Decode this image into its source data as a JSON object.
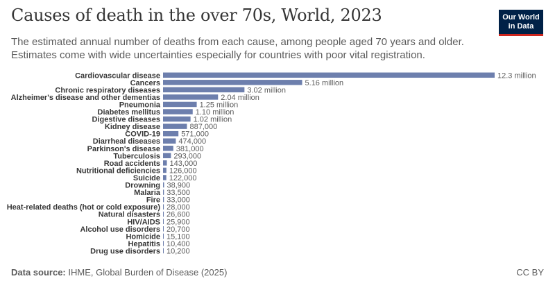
{
  "header": {
    "title": "Causes of death in the over 70s, World, 2023",
    "subtitle": "The estimated annual number of deaths from each cause, among people aged 70 years and older. Estimates come with wide uncertainties especially for countries with poor vital registration."
  },
  "logo": {
    "line1": "Our World",
    "line2": "in Data"
  },
  "footer": {
    "source_label": "Data source:",
    "source_text": "IHME, Global Burden of Disease (2025)",
    "license": "CC BY"
  },
  "colors": {
    "bar": "#6d7fad",
    "logo_bg": "#002147",
    "logo_accent": "#ce261e"
  },
  "chart_data": {
    "type": "bar",
    "orientation": "horizontal",
    "categories": [
      "Cardiovascular disease",
      "Cancers",
      "Chronic respiratory diseases",
      "Alzheimer's disease and other dementias",
      "Pneumonia",
      "Diabetes mellitus",
      "Digestive diseases",
      "Kidney disease",
      "COVID-19",
      "Diarrheal diseases",
      "Parkinson's disease",
      "Tuberculosis",
      "Road accidents",
      "Nutritional deficiencies",
      "Suicide",
      "Drowning",
      "Malaria",
      "Fire",
      "Heat-related deaths (hot or cold exposure)",
      "Natural disasters",
      "HIV/AIDS",
      "Alcohol use disorders",
      "Homicide",
      "Hepatitis",
      "Drug use disorders"
    ],
    "values": [
      12300000,
      5160000,
      3020000,
      2040000,
      1250000,
      1100000,
      1020000,
      887000,
      571000,
      474000,
      381000,
      293000,
      143000,
      126000,
      122000,
      38900,
      33500,
      33000,
      28000,
      26600,
      25900,
      20700,
      15100,
      10400,
      10200
    ],
    "value_labels": [
      "12.3 million",
      "5.16 million",
      "3.02 million",
      "2.04 million",
      "1.25 million",
      "1.10 million",
      "1.02 million",
      "887,000",
      "571,000",
      "474,000",
      "381,000",
      "293,000",
      "143,000",
      "126,000",
      "122,000",
      "38,900",
      "33,500",
      "33,000",
      "28,000",
      "26,600",
      "25,900",
      "20,700",
      "15,100",
      "10,400",
      "10,200"
    ],
    "xlim": [
      0,
      12300000
    ],
    "grid": false
  }
}
